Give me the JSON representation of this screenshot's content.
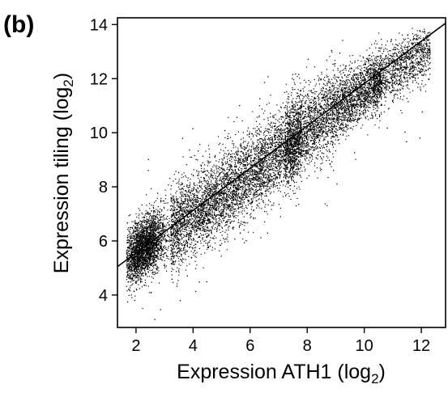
{
  "chart_data": {
    "type": "scatter",
    "panel_label": "(b)",
    "xlabel": {
      "text": "Expression ATH1 (log",
      "sub": "2",
      "close": ")"
    },
    "ylabel": {
      "text": "Expression tiling (log",
      "sub": "2",
      "close": ")"
    },
    "xlim": [
      1.35,
      12.85
    ],
    "ylim": [
      2.8,
      14.25
    ],
    "x_ticks": [
      "2",
      "4",
      "6",
      "8",
      "10",
      "12"
    ],
    "y_ticks": [
      "4",
      "6",
      "8",
      "10",
      "12",
      "14"
    ],
    "regression_line": {
      "x": [
        1.35,
        12.85
      ],
      "y": [
        5.05,
        14.05
      ]
    },
    "point_color": "#000000",
    "dense_trend": {
      "x": [
        2.0,
        3.0,
        4.0,
        5.0,
        6.0,
        7.0,
        8.0,
        9.0,
        10.0,
        11.0,
        12.0
      ],
      "y": [
        5.6,
        6.3,
        7.0,
        7.7,
        8.5,
        9.3,
        10.1,
        10.9,
        11.6,
        12.3,
        12.9
      ]
    }
  }
}
